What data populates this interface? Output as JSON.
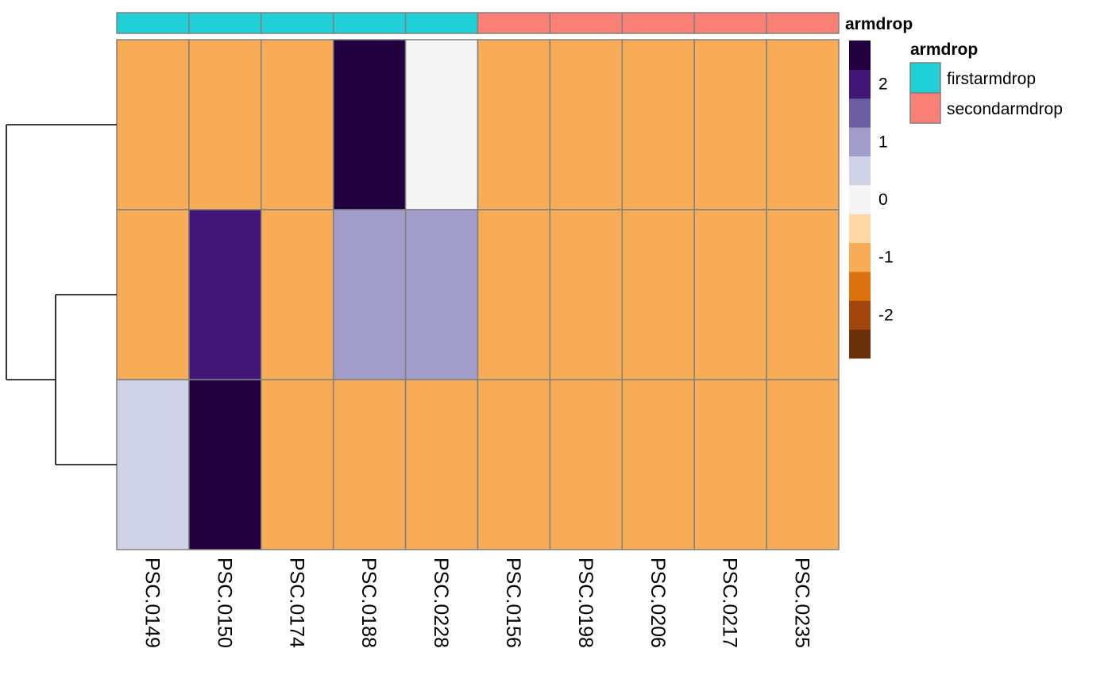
{
  "chart_data": {
    "type": "heatmap",
    "columns": [
      "PSC.0149",
      "PSC.0150",
      "PSC.0174",
      "PSC.0188",
      "PSC.0228",
      "PSC.0156",
      "PSC.0198",
      "PSC.0206",
      "PSC.0217",
      "PSC.0235"
    ],
    "rows": 3,
    "values": [
      [
        -0.75,
        -0.75,
        -0.75,
        2.75,
        0.0,
        -0.75,
        -0.75,
        -0.75,
        -0.75,
        -0.75
      ],
      [
        -0.75,
        2.25,
        -0.75,
        1.0,
        1.0,
        -0.75,
        -0.75,
        -0.75,
        -0.75,
        -0.75
      ],
      [
        0.5,
        2.75,
        -0.75,
        -0.75,
        -0.75,
        -0.75,
        -0.75,
        -0.75,
        -0.75,
        -0.75
      ]
    ],
    "column_annotation": {
      "name": "armdrop",
      "values": [
        "firstarmdrop",
        "firstarmdrop",
        "firstarmdrop",
        "firstarmdrop",
        "firstarmdrop",
        "secondarmdrop",
        "secondarmdrop",
        "secondarmdrop",
        "secondarmdrop",
        "secondarmdrop"
      ],
      "levels": [
        {
          "label": "firstarmdrop",
          "color": "#1fd1d6"
        },
        {
          "label": "secondarmdrop",
          "color": "#fa7f75"
        }
      ]
    },
    "color_scale": {
      "breaks": [
        -2.75,
        -2.25,
        -1.75,
        -1.25,
        -0.75,
        -0.25,
        0.25,
        0.75,
        1.25,
        1.75,
        2.25,
        2.75
      ],
      "colors": [
        "#693009",
        "#a3450d",
        "#dc720f",
        "#f8ac56",
        "#fdd8a6",
        "#f5f5f5",
        "#d0d3e8",
        "#a29ccb",
        "#6c5ea3",
        "#411676",
        "#22003f"
      ],
      "tick_labels": [
        "2",
        "1",
        "0",
        "-1",
        "-2"
      ],
      "tick_values": [
        2,
        1,
        0,
        -1,
        -2
      ]
    },
    "row_dendrogram": "row 1 joins last; rows 2 and 3 cluster first",
    "cell_border_color": "#808080"
  }
}
